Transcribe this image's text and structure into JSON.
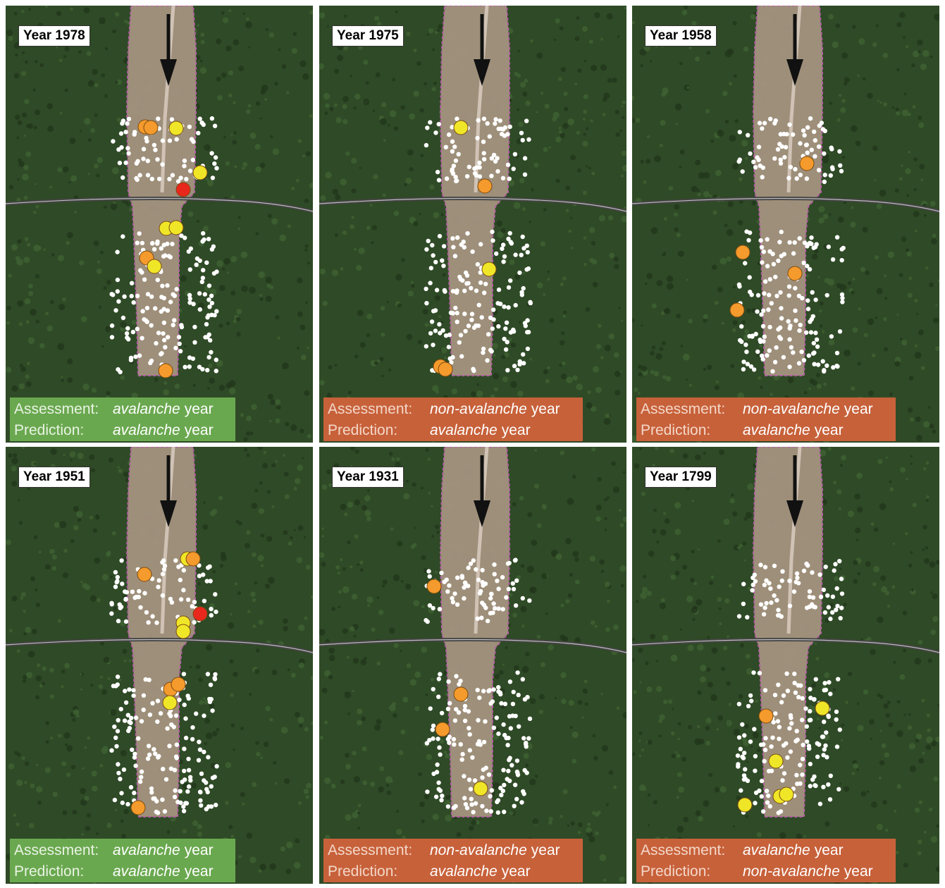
{
  "panels": [
    {
      "year_label": "Year 1978",
      "assessment_label": "Assessment:",
      "assessment_value": "avalanche",
      "prediction_label": "Prediction:",
      "prediction_value": "avalanche",
      "year_word": "year",
      "match": true,
      "marked_trees": [
        {
          "level": "orange"
        },
        {
          "level": "orange"
        },
        {
          "level": "yellow"
        },
        {
          "level": "yellow"
        },
        {
          "level": "red"
        },
        {
          "level": "yellow"
        },
        {
          "level": "yellow"
        },
        {
          "level": "orange"
        },
        {
          "level": "yellow"
        },
        {
          "level": "orange"
        }
      ]
    },
    {
      "year_label": "Year 1975",
      "assessment_label": "Assessment:",
      "assessment_value": "non-avalanche",
      "prediction_label": "Prediction:",
      "prediction_value": "avalanche",
      "year_word": "year",
      "match": false,
      "marked_trees": [
        {
          "level": "yellow"
        },
        {
          "level": "orange"
        },
        {
          "level": "yellow"
        },
        {
          "level": "orange"
        },
        {
          "level": "orange"
        }
      ]
    },
    {
      "year_label": "Year 1958",
      "assessment_label": "Assessment:",
      "assessment_value": "non-avalanche",
      "prediction_label": "Prediction:",
      "prediction_value": "avalanche",
      "year_word": "year",
      "match": false,
      "marked_trees": [
        {
          "level": "orange"
        },
        {
          "level": "orange"
        },
        {
          "level": "orange"
        },
        {
          "level": "orange"
        }
      ]
    },
    {
      "year_label": "Year 1951",
      "assessment_label": "Assessment:",
      "assessment_value": "avalanche",
      "prediction_label": "Prediction:",
      "prediction_value": "avalanche",
      "year_word": "year",
      "match": true,
      "marked_trees": [
        {
          "level": "orange"
        },
        {
          "level": "yellow"
        },
        {
          "level": "orange"
        },
        {
          "level": "yellow"
        },
        {
          "level": "red"
        },
        {
          "level": "yellow"
        },
        {
          "level": "orange"
        },
        {
          "level": "orange"
        },
        {
          "level": "yellow"
        },
        {
          "level": "orange"
        }
      ]
    },
    {
      "year_label": "Year 1931",
      "assessment_label": "Assessment:",
      "assessment_value": "non-avalanche",
      "prediction_label": "Prediction:",
      "prediction_value": "avalanche",
      "year_word": "year",
      "match": false,
      "marked_trees": [
        {
          "level": "orange"
        },
        {
          "level": "orange"
        },
        {
          "level": "orange"
        },
        {
          "level": "yellow"
        }
      ]
    },
    {
      "year_label": "Year 1799",
      "assessment_label": "Assessment:",
      "assessment_value": "avalanche",
      "prediction_label": "Prediction:",
      "prediction_value": "non-avalanche",
      "year_word": "year",
      "match": false,
      "marked_trees": [
        {
          "level": "orange"
        },
        {
          "level": "yellow"
        },
        {
          "level": "yellow"
        },
        {
          "level": "yellow"
        },
        {
          "level": "yellow"
        },
        {
          "level": "yellow"
        }
      ]
    }
  ],
  "colors": {
    "forest": "#2f4a26",
    "path": "#a89582",
    "path_border": "#c060b0",
    "road": "#444444",
    "sample_tree": "#ffffff",
    "yellow": "#f0e628",
    "orange": "#f59a2c",
    "red": "#e8281c",
    "match_box": "#6aa84f",
    "mismatch_box": "#c7613a"
  },
  "icons": [
    "down-arrow-icon"
  ]
}
